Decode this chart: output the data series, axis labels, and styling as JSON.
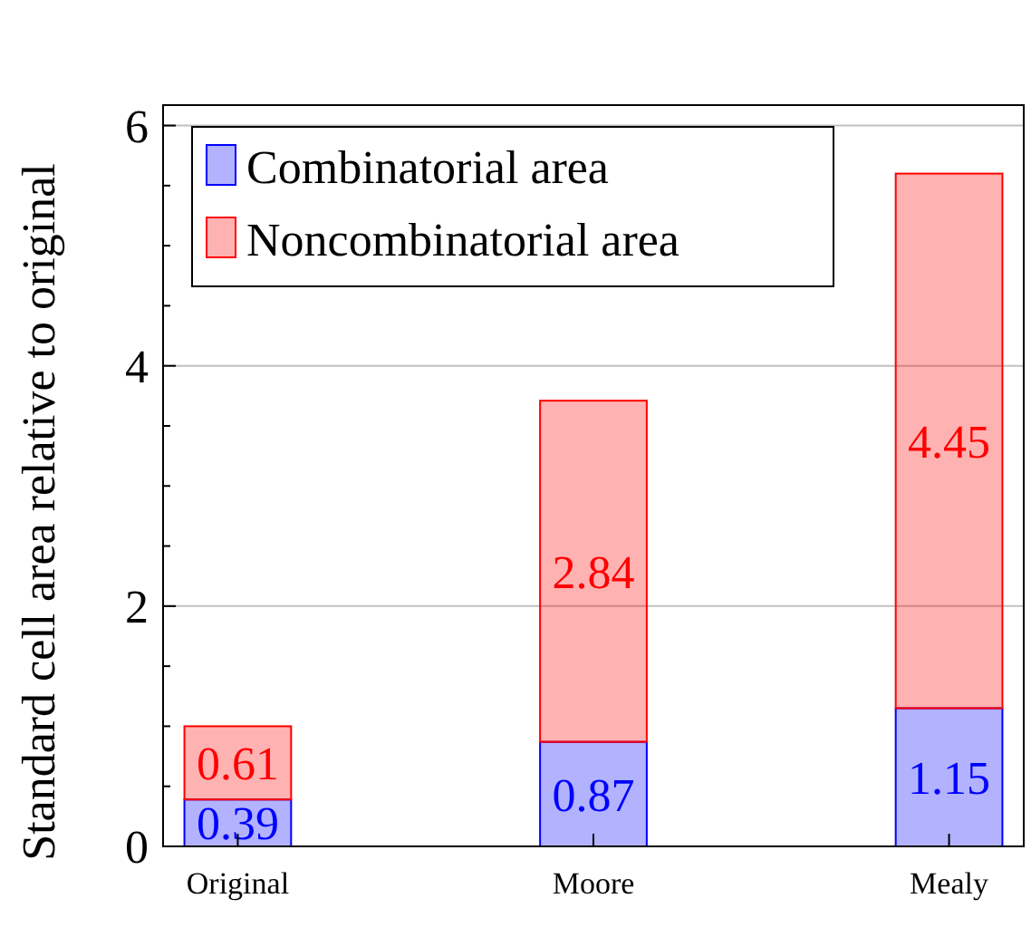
{
  "chart_data": {
    "type": "bar",
    "stacked": true,
    "ylabel": "Standard cell area relative to original",
    "categories": [
      "Original",
      "Moore",
      "Mealy"
    ],
    "series": [
      {
        "name": "Combinatorial area",
        "color": "#0000ff",
        "values": [
          0.39,
          0.87,
          1.15
        ]
      },
      {
        "name": "Noncombinatorial area",
        "color": "#ff0000",
        "values": [
          0.61,
          2.84,
          4.45
        ]
      }
    ],
    "ylim": [
      0,
      6.17
    ],
    "yticks": [
      0,
      2,
      4,
      6
    ],
    "grid": "y",
    "legend": "top left",
    "data_labels": true
  }
}
